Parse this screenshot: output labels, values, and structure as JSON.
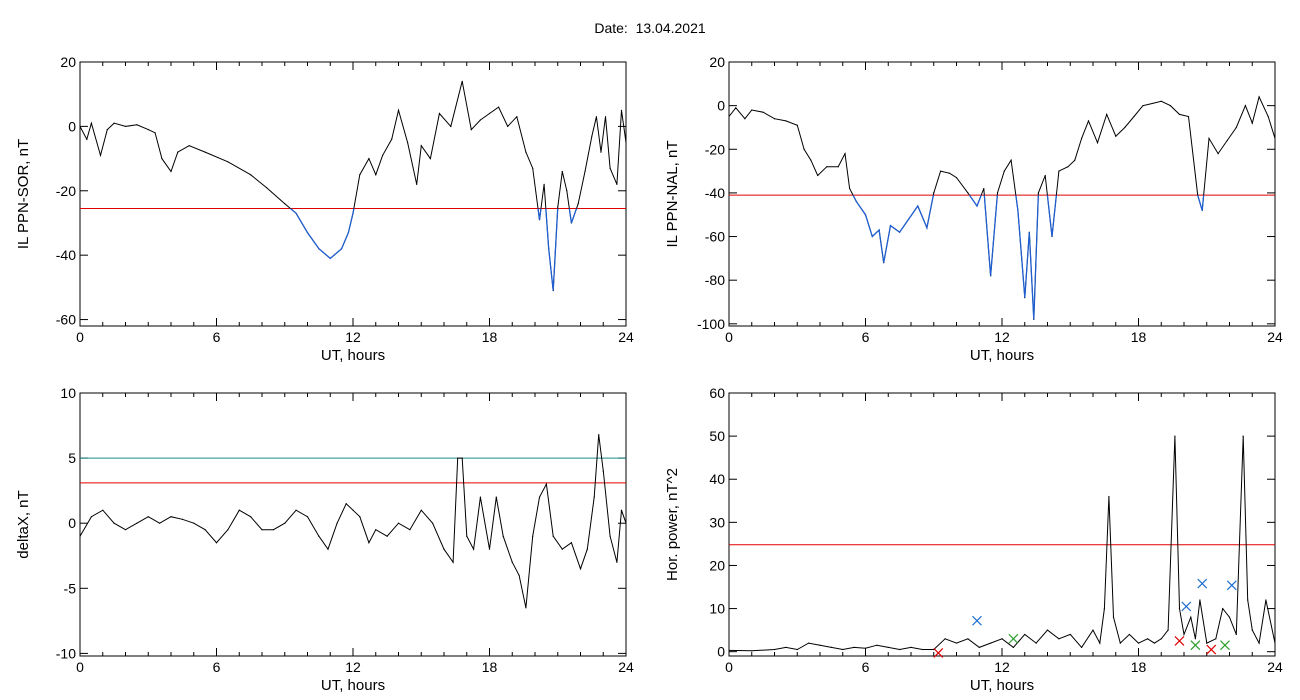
{
  "title": "Date:  13.04.2021",
  "chart_data": [
    {
      "type": "line",
      "id": "sor",
      "ylabel": "IL PPN-SOR, nT",
      "xlabel": "UT, hours",
      "xlim": [
        0,
        24
      ],
      "ylim": [
        -62,
        20
      ],
      "xticks": [
        "0",
        "6",
        "12",
        "18",
        "24"
      ],
      "yticks": [
        {
          "v": 20,
          "label": "20"
        },
        {
          "v": 0,
          "label": "0"
        },
        {
          "v": -20,
          "label": "-20"
        },
        {
          "v": -40,
          "label": "-40"
        },
        {
          "v": -60,
          "label": "-60"
        }
      ],
      "threshold": {
        "value": -25.5,
        "color": "#e00000"
      },
      "below_color": "#1f5fd0",
      "line_color": "#000000",
      "points": [
        [
          0,
          0
        ],
        [
          0.3,
          -4
        ],
        [
          0.5,
          1
        ],
        [
          0.9,
          -9
        ],
        [
          1.2,
          -1
        ],
        [
          1.5,
          1
        ],
        [
          2,
          0
        ],
        [
          2.5,
          0.5
        ],
        [
          3,
          -1
        ],
        [
          3.3,
          -2
        ],
        [
          3.6,
          -10
        ],
        [
          4,
          -14
        ],
        [
          4.3,
          -8
        ],
        [
          4.8,
          -6
        ],
        [
          5.5,
          -8
        ],
        [
          6.5,
          -11
        ],
        [
          7.5,
          -15
        ],
        [
          8.2,
          -19
        ],
        [
          9,
          -24
        ],
        [
          9.5,
          -27
        ],
        [
          10,
          -33
        ],
        [
          10.5,
          -38
        ],
        [
          11,
          -41
        ],
        [
          11.5,
          -38
        ],
        [
          11.8,
          -33
        ],
        [
          12,
          -27
        ],
        [
          12.3,
          -15
        ],
        [
          12.7,
          -10
        ],
        [
          13,
          -15
        ],
        [
          13.3,
          -9
        ],
        [
          13.7,
          -4
        ],
        [
          14,
          5
        ],
        [
          14.4,
          -5
        ],
        [
          14.8,
          -18
        ],
        [
          15,
          -6
        ],
        [
          15.4,
          -10
        ],
        [
          15.8,
          4
        ],
        [
          16.3,
          0
        ],
        [
          16.8,
          14
        ],
        [
          17.2,
          -1
        ],
        [
          17.6,
          2
        ],
        [
          18,
          4
        ],
        [
          18.4,
          6
        ],
        [
          18.8,
          0
        ],
        [
          19.2,
          3
        ],
        [
          19.6,
          -8
        ],
        [
          19.9,
          -13
        ],
        [
          20.2,
          -29
        ],
        [
          20.4,
          -18
        ],
        [
          20.6,
          -38
        ],
        [
          20.8,
          -51
        ],
        [
          21,
          -25
        ],
        [
          21.2,
          -14
        ],
        [
          21.4,
          -20
        ],
        [
          21.6,
          -30
        ],
        [
          21.9,
          -24
        ],
        [
          22.2,
          -14
        ],
        [
          22.5,
          -3
        ],
        [
          22.7,
          3
        ],
        [
          22.9,
          -8
        ],
        [
          23.1,
          3
        ],
        [
          23.3,
          -13
        ],
        [
          23.6,
          -18
        ],
        [
          23.8,
          5
        ],
        [
          24,
          -5
        ]
      ]
    },
    {
      "type": "line",
      "id": "nal",
      "ylabel": "IL PPN-NAL, nT",
      "xlabel": "UT, hours",
      "xlim": [
        0,
        24
      ],
      "ylim": [
        -101,
        20
      ],
      "xticks": [
        "0",
        "6",
        "12",
        "18",
        "24"
      ],
      "yticks": [
        {
          "v": 20,
          "label": "20"
        },
        {
          "v": 0,
          "label": "0"
        },
        {
          "v": -20,
          "label": "-20"
        },
        {
          "v": -40,
          "label": "-40"
        },
        {
          "v": -60,
          "label": "-60"
        },
        {
          "v": -80,
          "label": "-80"
        },
        {
          "v": -100,
          "label": "-100"
        }
      ],
      "threshold": {
        "value": -41,
        "color": "#e00000"
      },
      "below_color": "#1f5fd0",
      "line_color": "#000000",
      "points": [
        [
          0,
          -5
        ],
        [
          0.3,
          -1
        ],
        [
          0.7,
          -6
        ],
        [
          1,
          -2
        ],
        [
          1.5,
          -3
        ],
        [
          2,
          -6
        ],
        [
          2.5,
          -7
        ],
        [
          3,
          -9
        ],
        [
          3.3,
          -20
        ],
        [
          3.6,
          -25
        ],
        [
          3.9,
          -32
        ],
        [
          4.3,
          -28
        ],
        [
          4.8,
          -28
        ],
        [
          5.1,
          -22
        ],
        [
          5.3,
          -38
        ],
        [
          5.6,
          -44
        ],
        [
          6,
          -50
        ],
        [
          6.3,
          -60
        ],
        [
          6.6,
          -57
        ],
        [
          6.8,
          -72
        ],
        [
          7.1,
          -55
        ],
        [
          7.5,
          -58
        ],
        [
          7.9,
          -52
        ],
        [
          8.3,
          -46
        ],
        [
          8.7,
          -56
        ],
        [
          9,
          -40
        ],
        [
          9.3,
          -30
        ],
        [
          9.7,
          -31
        ],
        [
          10,
          -33
        ],
        [
          10.5,
          -40
        ],
        [
          10.9,
          -46
        ],
        [
          11.2,
          -38
        ],
        [
          11.5,
          -78
        ],
        [
          11.8,
          -40
        ],
        [
          12.1,
          -30
        ],
        [
          12.4,
          -25
        ],
        [
          12.7,
          -48
        ],
        [
          13,
          -88
        ],
        [
          13.2,
          -58
        ],
        [
          13.4,
          -98
        ],
        [
          13.6,
          -40
        ],
        [
          13.9,
          -32
        ],
        [
          14.2,
          -60
        ],
        [
          14.5,
          -30
        ],
        [
          14.9,
          -28
        ],
        [
          15.2,
          -25
        ],
        [
          15.5,
          -15
        ],
        [
          15.8,
          -7
        ],
        [
          16.2,
          -17
        ],
        [
          16.6,
          -4
        ],
        [
          17,
          -14
        ],
        [
          17.4,
          -10
        ],
        [
          17.8,
          -5
        ],
        [
          18.2,
          0
        ],
        [
          18.6,
          1
        ],
        [
          19,
          2
        ],
        [
          19.4,
          0
        ],
        [
          19.8,
          -4
        ],
        [
          20.2,
          -5
        ],
        [
          20.6,
          -41
        ],
        [
          20.8,
          -48
        ],
        [
          21.1,
          -15
        ],
        [
          21.5,
          -22
        ],
        [
          21.9,
          -16
        ],
        [
          22.3,
          -10
        ],
        [
          22.7,
          0
        ],
        [
          23,
          -8
        ],
        [
          23.3,
          4
        ],
        [
          23.7,
          -5
        ],
        [
          24,
          -15
        ]
      ]
    },
    {
      "type": "line",
      "id": "deltax",
      "ylabel": "deltaX, nT",
      "xlabel": "UT, hours",
      "xlim": [
        0,
        24
      ],
      "ylim": [
        -10.2,
        10
      ],
      "xticks": [
        "0",
        "6",
        "12",
        "18",
        "24"
      ],
      "yticks": [
        {
          "v": 10,
          "label": "10"
        },
        {
          "v": 5,
          "label": "5"
        },
        {
          "v": 0,
          "label": "0"
        },
        {
          "v": -5,
          "label": "-5"
        },
        {
          "v": -10,
          "label": "-10"
        }
      ],
      "hlines": [
        {
          "value": 5,
          "color": "#1a8a8a"
        },
        {
          "value": 3.1,
          "color": "#e00000"
        }
      ],
      "line_color": "#000000",
      "points": [
        [
          0,
          -1
        ],
        [
          0.5,
          0.5
        ],
        [
          1,
          1
        ],
        [
          1.5,
          0
        ],
        [
          2,
          -0.5
        ],
        [
          2.5,
          0
        ],
        [
          3,
          0.5
        ],
        [
          3.5,
          0
        ],
        [
          4,
          0.5
        ],
        [
          4.5,
          0.3
        ],
        [
          5,
          0
        ],
        [
          5.5,
          -0.5
        ],
        [
          6,
          -1.5
        ],
        [
          6.5,
          -0.5
        ],
        [
          7,
          1
        ],
        [
          7.5,
          0.5
        ],
        [
          8,
          -0.5
        ],
        [
          8.5,
          -0.5
        ],
        [
          9,
          0
        ],
        [
          9.5,
          1
        ],
        [
          10,
          0.5
        ],
        [
          10.5,
          -1
        ],
        [
          10.9,
          -2
        ],
        [
          11.3,
          0
        ],
        [
          11.7,
          1.5
        ],
        [
          12,
          1
        ],
        [
          12.3,
          0.5
        ],
        [
          12.7,
          -1.5
        ],
        [
          13,
          -0.5
        ],
        [
          13.5,
          -1
        ],
        [
          14,
          0
        ],
        [
          14.5,
          -0.5
        ],
        [
          15,
          1
        ],
        [
          15.5,
          0
        ],
        [
          16,
          -2
        ],
        [
          16.4,
          -3
        ],
        [
          16.6,
          5
        ],
        [
          16.8,
          5
        ],
        [
          17,
          -1
        ],
        [
          17.3,
          -2
        ],
        [
          17.6,
          2
        ],
        [
          18,
          -2
        ],
        [
          18.3,
          2
        ],
        [
          18.6,
          -1
        ],
        [
          19,
          -3
        ],
        [
          19.3,
          -4
        ],
        [
          19.6,
          -6.5
        ],
        [
          19.9,
          -1
        ],
        [
          20.2,
          2
        ],
        [
          20.5,
          3
        ],
        [
          20.8,
          -1
        ],
        [
          21.2,
          -2
        ],
        [
          21.6,
          -1.5
        ],
        [
          22,
          -3.5
        ],
        [
          22.3,
          -2
        ],
        [
          22.6,
          2
        ],
        [
          22.8,
          6.8
        ],
        [
          23,
          4
        ],
        [
          23.3,
          -1
        ],
        [
          23.6,
          -3
        ],
        [
          23.8,
          1
        ],
        [
          24,
          0
        ]
      ]
    },
    {
      "type": "line",
      "id": "power",
      "ylabel": "Hor. power, nT^2",
      "xlabel": "UT, hours",
      "xlim": [
        0,
        24
      ],
      "ylim": [
        -1,
        60
      ],
      "xticks": [
        "0",
        "6",
        "12",
        "18",
        "24"
      ],
      "yticks": [
        {
          "v": 60,
          "label": "60"
        },
        {
          "v": 50,
          "label": "50"
        },
        {
          "v": 40,
          "label": "40"
        },
        {
          "v": 30,
          "label": "30"
        },
        {
          "v": 20,
          "label": "20"
        },
        {
          "v": 10,
          "label": "10"
        },
        {
          "v": 0,
          "label": "0"
        }
      ],
      "threshold": {
        "value": 24.8,
        "color": "#e00000"
      },
      "line_color": "#000000",
      "points": [
        [
          0,
          0.3
        ],
        [
          1,
          0.2
        ],
        [
          2,
          0.5
        ],
        [
          2.5,
          1
        ],
        [
          3,
          0.5
        ],
        [
          3.5,
          2
        ],
        [
          4,
          1.5
        ],
        [
          4.5,
          1
        ],
        [
          5,
          0.5
        ],
        [
          5.5,
          1
        ],
        [
          6,
          0.8
        ],
        [
          6.5,
          1.5
        ],
        [
          7,
          1
        ],
        [
          7.5,
          0.5
        ],
        [
          8,
          1
        ],
        [
          8.5,
          0.5
        ],
        [
          9,
          0.5
        ],
        [
          9.5,
          3
        ],
        [
          10,
          2
        ],
        [
          10.5,
          3
        ],
        [
          11,
          1
        ],
        [
          11.5,
          2
        ],
        [
          12,
          3
        ],
        [
          12.5,
          1
        ],
        [
          13,
          4
        ],
        [
          13.5,
          2
        ],
        [
          14,
          5
        ],
        [
          14.5,
          3
        ],
        [
          15,
          4
        ],
        [
          15.5,
          1
        ],
        [
          16,
          5
        ],
        [
          16.3,
          2
        ],
        [
          16.5,
          10
        ],
        [
          16.7,
          36
        ],
        [
          16.9,
          8
        ],
        [
          17.2,
          2
        ],
        [
          17.6,
          4
        ],
        [
          18,
          2
        ],
        [
          18.4,
          3
        ],
        [
          18.7,
          2
        ],
        [
          19,
          3
        ],
        [
          19.3,
          5
        ],
        [
          19.6,
          50
        ],
        [
          19.8,
          10
        ],
        [
          20,
          4
        ],
        [
          20.3,
          8
        ],
        [
          20.5,
          3
        ],
        [
          20.7,
          12
        ],
        [
          21,
          2
        ],
        [
          21.4,
          3
        ],
        [
          21.7,
          10
        ],
        [
          22,
          8
        ],
        [
          22.3,
          4
        ],
        [
          22.6,
          50
        ],
        [
          22.8,
          12
        ],
        [
          23,
          5
        ],
        [
          23.3,
          2
        ],
        [
          23.6,
          12
        ],
        [
          24,
          2
        ]
      ],
      "markers": [
        {
          "x": 10.9,
          "y": 7.2,
          "color": "#1f6fd0"
        },
        {
          "x": 20.1,
          "y": 10.5,
          "color": "#1f6fd0"
        },
        {
          "x": 20.8,
          "y": 15.8,
          "color": "#1f6fd0"
        },
        {
          "x": 22.1,
          "y": 15.4,
          "color": "#1f6fd0"
        },
        {
          "x": 12.5,
          "y": 3,
          "color": "#2aa02a"
        },
        {
          "x": 20.5,
          "y": 1.5,
          "color": "#2aa02a"
        },
        {
          "x": 21.8,
          "y": 1.5,
          "color": "#2aa02a"
        },
        {
          "x": 9.2,
          "y": -0.3,
          "color": "#e00000"
        },
        {
          "x": 19.8,
          "y": 2.5,
          "color": "#e00000"
        },
        {
          "x": 21.2,
          "y": 0.5,
          "color": "#e00000"
        }
      ]
    }
  ]
}
